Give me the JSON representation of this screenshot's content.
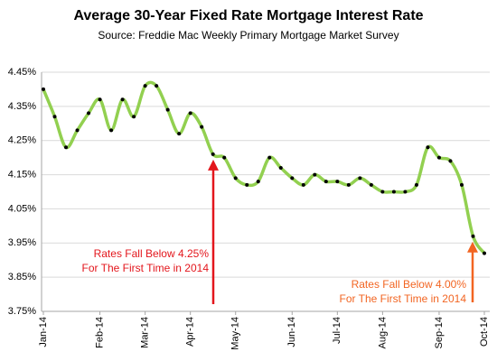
{
  "chart_data": {
    "type": "line",
    "title": "Average 30-Year Fixed Rate Mortgage Interest Rate",
    "subtitle": "Source: Freddie Mac Weekly Primary Mortgage Market Survey",
    "categories": [
      "Jan-14",
      null,
      null,
      null,
      null,
      "Feb-14",
      null,
      null,
      null,
      "Mar-14",
      null,
      null,
      null,
      "Apr-14",
      null,
      null,
      null,
      "May-14",
      null,
      null,
      null,
      null,
      "Jun-14",
      null,
      null,
      null,
      "Jul-14",
      null,
      null,
      null,
      "Aug-14",
      null,
      null,
      null,
      null,
      "Sep-14",
      null,
      null,
      null,
      "Oct-14"
    ],
    "series": [
      {
        "name": "30-Year Fixed Rate",
        "color": "#92d050",
        "values": [
          4.4,
          4.32,
          4.23,
          4.28,
          4.33,
          4.37,
          4.28,
          4.37,
          4.32,
          4.41,
          4.41,
          4.34,
          4.27,
          4.33,
          4.29,
          4.21,
          4.2,
          4.14,
          4.12,
          4.13,
          4.2,
          4.17,
          4.14,
          4.12,
          4.15,
          4.13,
          4.13,
          4.12,
          4.14,
          4.12,
          4.1,
          4.1,
          4.1,
          4.12,
          4.23,
          4.2,
          4.19,
          4.12,
          3.97,
          3.92
        ]
      }
    ],
    "ylim": [
      3.75,
      4.45
    ],
    "yticks": [
      {
        "value": 3.75,
        "label": "3.75%"
      },
      {
        "value": 3.85,
        "label": "3.85%"
      },
      {
        "value": 3.95,
        "label": "3.95%"
      },
      {
        "value": 4.05,
        "label": "4.05%"
      },
      {
        "value": 4.15,
        "label": "4.15%"
      },
      {
        "value": 4.25,
        "label": "4.25%"
      },
      {
        "value": 4.35,
        "label": "4.35%"
      },
      {
        "value": 4.45,
        "label": "4.45%"
      }
    ],
    "grid": true,
    "annotations": [
      {
        "lines": [
          "Rates Fall Below 4.25%",
          "For The First Time in 2014"
        ],
        "color": "#e3161c"
      },
      {
        "lines": [
          "Rates Fall Below 4.00%",
          "For The First Time in 2014"
        ],
        "color": "#f26522"
      }
    ]
  }
}
